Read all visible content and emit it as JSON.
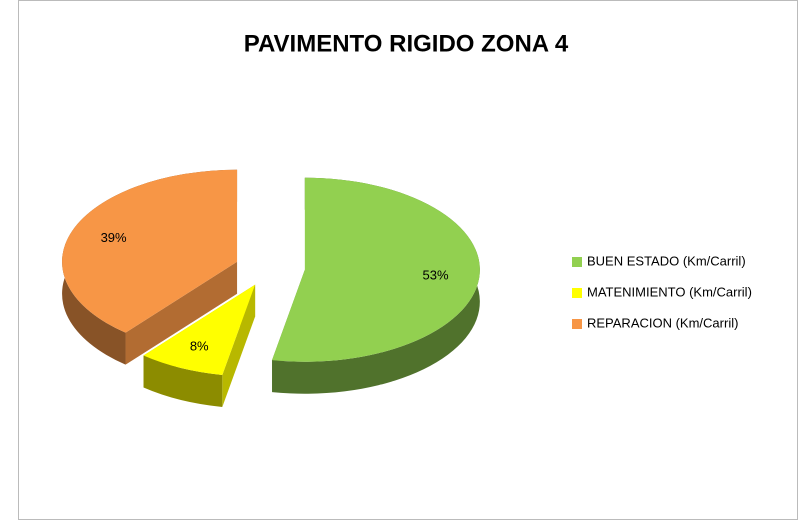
{
  "chart_data": {
    "type": "pie",
    "title": "PAVIMENTO RIGIDO ZONA 4",
    "categories": [
      "BUEN ESTADO (Km/Carril)",
      "MATENIMIENTO (Km/Carril)",
      "REPARACION (Km/Carril)"
    ],
    "values": [
      53,
      8,
      39
    ],
    "value_labels": [
      "53%",
      "8%",
      "39%"
    ],
    "colors": [
      "#92d050",
      "#ffff00",
      "#f79646"
    ],
    "legend": "right"
  }
}
